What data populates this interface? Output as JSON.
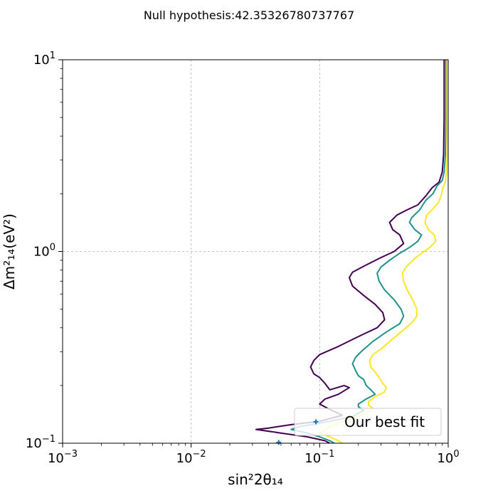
{
  "chart_data": {
    "type": "line",
    "title": "Null hypothesis:42.35326780737767",
    "xlabel": "sin²2θ₁₄",
    "ylabel": "Δm²₁₄(eV²)",
    "xscale": "log",
    "yscale": "log",
    "xlim": [
      0.001,
      1
    ],
    "ylim": [
      0.1,
      10
    ],
    "x_ticks": [
      {
        "value": 0.001,
        "base": "10",
        "exp": "−3"
      },
      {
        "value": 0.01,
        "base": "10",
        "exp": "−2"
      },
      {
        "value": 0.1,
        "base": "10",
        "exp": "−1"
      },
      {
        "value": 1,
        "base": "10",
        "exp": "0"
      }
    ],
    "y_ticks": [
      {
        "value": 0.1,
        "base": "10",
        "exp": "−1"
      },
      {
        "value": 1,
        "base": "10",
        "exp": "0"
      },
      {
        "value": 10,
        "base": "10",
        "exp": "1"
      }
    ],
    "grid": true,
    "legend": {
      "placement": "lower-right",
      "entries": [
        "Our best fit"
      ]
    },
    "colors": {
      "dark": "#440154",
      "teal": "#21918c",
      "yellow": "#fde725",
      "marker": "#1f77b4",
      "grid": "#b0b0b0"
    },
    "series": [
      {
        "color": "#440154",
        "points": [
          [
            0.93,
            10
          ],
          [
            0.93,
            5
          ],
          [
            0.92,
            3.2
          ],
          [
            0.9,
            2.6
          ],
          [
            0.85,
            2.3
          ],
          [
            0.75,
            2.15
          ],
          [
            0.67,
            1.95
          ],
          [
            0.58,
            1.75
          ],
          [
            0.48,
            1.65
          ],
          [
            0.4,
            1.55
          ],
          [
            0.35,
            1.42
          ],
          [
            0.37,
            1.3
          ],
          [
            0.42,
            1.22
          ],
          [
            0.45,
            1.1
          ],
          [
            0.38,
            1.0
          ],
          [
            0.3,
            0.93
          ],
          [
            0.23,
            0.85
          ],
          [
            0.18,
            0.78
          ],
          [
            0.17,
            0.73
          ],
          [
            0.18,
            0.66
          ],
          [
            0.22,
            0.59
          ],
          [
            0.27,
            0.53
          ],
          [
            0.31,
            0.48
          ],
          [
            0.32,
            0.44
          ],
          [
            0.28,
            0.4
          ],
          [
            0.2,
            0.36
          ],
          [
            0.14,
            0.32
          ],
          [
            0.1,
            0.29
          ],
          [
            0.09,
            0.27
          ],
          [
            0.085,
            0.25
          ],
          [
            0.09,
            0.23
          ],
          [
            0.1,
            0.22
          ],
          [
            0.11,
            0.205
          ],
          [
            0.12,
            0.19
          ],
          [
            0.155,
            0.2
          ],
          [
            0.17,
            0.195
          ],
          [
            0.14,
            0.18
          ],
          [
            0.11,
            0.17
          ],
          [
            0.1,
            0.16
          ],
          [
            0.12,
            0.15
          ],
          [
            0.15,
            0.14
          ],
          [
            0.1,
            0.13
          ],
          [
            0.06,
            0.125
          ],
          [
            0.04,
            0.12
          ],
          [
            0.032,
            0.118
          ],
          [
            0.05,
            0.113
          ],
          [
            0.08,
            0.108
          ],
          [
            0.11,
            0.103
          ],
          [
            0.12,
            0.1
          ]
        ]
      },
      {
        "color": "#21918c",
        "points": [
          [
            0.96,
            10
          ],
          [
            0.96,
            5
          ],
          [
            0.95,
            3.2
          ],
          [
            0.93,
            2.6
          ],
          [
            0.9,
            2.35
          ],
          [
            0.82,
            2.2
          ],
          [
            0.76,
            2.0
          ],
          [
            0.67,
            1.85
          ],
          [
            0.6,
            1.65
          ],
          [
            0.52,
            1.5
          ],
          [
            0.5,
            1.42
          ],
          [
            0.55,
            1.3
          ],
          [
            0.62,
            1.22
          ],
          [
            0.58,
            1.13
          ],
          [
            0.5,
            1.05
          ],
          [
            0.42,
            0.98
          ],
          [
            0.35,
            0.9
          ],
          [
            0.3,
            0.83
          ],
          [
            0.28,
            0.77
          ],
          [
            0.29,
            0.7
          ],
          [
            0.32,
            0.63
          ],
          [
            0.38,
            0.56
          ],
          [
            0.43,
            0.5
          ],
          [
            0.45,
            0.46
          ],
          [
            0.42,
            0.42
          ],
          [
            0.33,
            0.38
          ],
          [
            0.26,
            0.34
          ],
          [
            0.21,
            0.3
          ],
          [
            0.19,
            0.28
          ],
          [
            0.18,
            0.26
          ],
          [
            0.19,
            0.24
          ],
          [
            0.2,
            0.225
          ],
          [
            0.22,
            0.215
          ],
          [
            0.23,
            0.2
          ],
          [
            0.25,
            0.19
          ],
          [
            0.27,
            0.18
          ],
          [
            0.23,
            0.17
          ],
          [
            0.2,
            0.16
          ],
          [
            0.2,
            0.155
          ],
          [
            0.22,
            0.148
          ],
          [
            0.18,
            0.138
          ],
          [
            0.12,
            0.13
          ],
          [
            0.07,
            0.122
          ],
          [
            0.06,
            0.118
          ],
          [
            0.08,
            0.113
          ],
          [
            0.1,
            0.108
          ],
          [
            0.12,
            0.103
          ],
          [
            0.13,
            0.1
          ]
        ]
      },
      {
        "color": "#fde725",
        "points": [
          [
            0.98,
            10
          ],
          [
            0.98,
            5
          ],
          [
            0.98,
            3.2
          ],
          [
            0.97,
            2.6
          ],
          [
            0.95,
            2.3
          ],
          [
            0.91,
            2.15
          ],
          [
            0.88,
            1.95
          ],
          [
            0.84,
            1.8
          ],
          [
            0.75,
            1.65
          ],
          [
            0.68,
            1.55
          ],
          [
            0.66,
            1.42
          ],
          [
            0.7,
            1.3
          ],
          [
            0.78,
            1.22
          ],
          [
            0.8,
            1.13
          ],
          [
            0.72,
            1.05
          ],
          [
            0.62,
            0.98
          ],
          [
            0.53,
            0.9
          ],
          [
            0.47,
            0.83
          ],
          [
            0.44,
            0.77
          ],
          [
            0.45,
            0.7
          ],
          [
            0.48,
            0.63
          ],
          [
            0.53,
            0.56
          ],
          [
            0.57,
            0.5
          ],
          [
            0.57,
            0.46
          ],
          [
            0.53,
            0.43
          ],
          [
            0.45,
            0.39
          ],
          [
            0.37,
            0.35
          ],
          [
            0.3,
            0.31
          ],
          [
            0.26,
            0.29
          ],
          [
            0.245,
            0.27
          ],
          [
            0.25,
            0.25
          ],
          [
            0.27,
            0.235
          ],
          [
            0.29,
            0.22
          ],
          [
            0.31,
            0.205
          ],
          [
            0.33,
            0.195
          ],
          [
            0.32,
            0.185
          ],
          [
            0.27,
            0.175
          ],
          [
            0.24,
            0.165
          ],
          [
            0.24,
            0.158
          ],
          [
            0.26,
            0.152
          ],
          [
            0.24,
            0.145
          ],
          [
            0.18,
            0.135
          ],
          [
            0.13,
            0.125
          ],
          [
            0.11,
            0.118
          ],
          [
            0.1,
            0.113
          ],
          [
            0.12,
            0.108
          ],
          [
            0.14,
            0.103
          ],
          [
            0.15,
            0.1
          ]
        ]
      }
    ],
    "markers": [
      {
        "x": 0.095,
        "y": 0.13,
        "symbol": "+"
      },
      {
        "x": 0.048,
        "y": 0.101,
        "symbol": "+"
      }
    ]
  }
}
